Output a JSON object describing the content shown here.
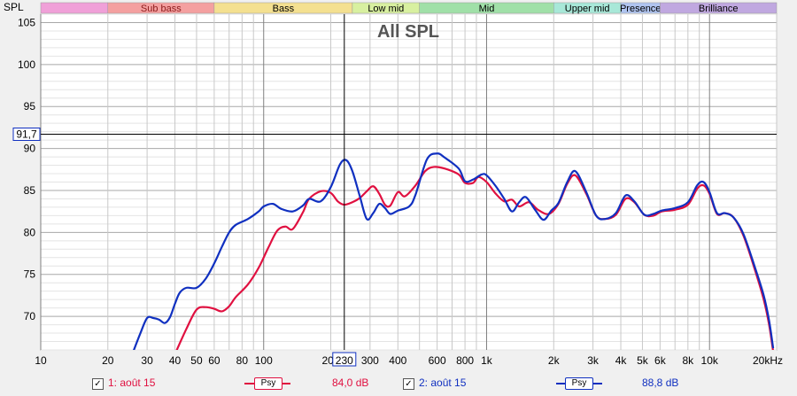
{
  "chart_data": {
    "type": "line",
    "title": "All SPL",
    "ylabel": "SPL",
    "xlabel": "",
    "x_scale": "log",
    "xlim": [
      10,
      20000
    ],
    "ylim": [
      66,
      106
    ],
    "x_ticks": [
      {
        "v": 10,
        "label": "10"
      },
      {
        "v": 20,
        "label": "20"
      },
      {
        "v": 30,
        "label": "30"
      },
      {
        "v": 40,
        "label": "40"
      },
      {
        "v": 50,
        "label": "50"
      },
      {
        "v": 60,
        "label": "60"
      },
      {
        "v": 80,
        "label": "80"
      },
      {
        "v": 100,
        "label": "100"
      },
      {
        "v": 200,
        "label": "200"
      },
      {
        "v": 300,
        "label": "300"
      },
      {
        "v": 400,
        "label": "400"
      },
      {
        "v": 600,
        "label": "600"
      },
      {
        "v": 800,
        "label": "800"
      },
      {
        "v": 1000,
        "label": "1k"
      },
      {
        "v": 2000,
        "label": "2k"
      },
      {
        "v": 3000,
        "label": "3k"
      },
      {
        "v": 4000,
        "label": "4k"
      },
      {
        "v": 5000,
        "label": "5k"
      },
      {
        "v": 6000,
        "label": "6k"
      },
      {
        "v": 8000,
        "label": "8k"
      },
      {
        "v": 10000,
        "label": "10k"
      },
      {
        "v": 20000,
        "label": "20kHz"
      }
    ],
    "y_ticks": [
      70,
      75,
      80,
      85,
      90,
      95,
      100,
      105
    ],
    "cursor": {
      "x": 230,
      "x_label": "230",
      "y": 91.7,
      "y_label": "91,7"
    },
    "bands": [
      {
        "name": "",
        "from": 10,
        "to": 20,
        "color": "#f0a0d8",
        "text_color": "#000000"
      },
      {
        "name": "Sub bass",
        "from": 20,
        "to": 60,
        "color": "#f4a0a0",
        "text_color": "#8b1a1a"
      },
      {
        "name": "Bass",
        "from": 60,
        "to": 250,
        "color": "#f4e090",
        "text_color": "#000000"
      },
      {
        "name": "Low mid",
        "from": 250,
        "to": 500,
        "color": "#d8f0a0",
        "text_color": "#000000"
      },
      {
        "name": "Mid",
        "from": 500,
        "to": 2000,
        "color": "#a0e0a8",
        "text_color": "#000000"
      },
      {
        "name": "Upper mid",
        "from": 2000,
        "to": 4000,
        "color": "#a8e8d8",
        "text_color": "#000000"
      },
      {
        "name": "Presence",
        "from": 4000,
        "to": 6000,
        "color": "#b0c4f0",
        "text_color": "#000000"
      },
      {
        "name": "Brilliance",
        "from": 6000,
        "to": 20000,
        "color": "#c0a8e0",
        "text_color": "#000000"
      }
    ],
    "series": [
      {
        "name": "1: août 15",
        "color": "#e01040",
        "psy_label": "Psy",
        "value_label": "84,0 dB",
        "points": [
          [
            40,
            65.5
          ],
          [
            45,
            68.5
          ],
          [
            50,
            70.8
          ],
          [
            55,
            71.1
          ],
          [
            60,
            70.9
          ],
          [
            65,
            70.6
          ],
          [
            70,
            71.2
          ],
          [
            75,
            72.3
          ],
          [
            85,
            73.8
          ],
          [
            95,
            75.8
          ],
          [
            105,
            78.2
          ],
          [
            115,
            80.2
          ],
          [
            125,
            80.7
          ],
          [
            135,
            80.4
          ],
          [
            150,
            82.4
          ],
          [
            160,
            84.0
          ],
          [
            180,
            84.9
          ],
          [
            200,
            84.7
          ],
          [
            215,
            83.7
          ],
          [
            230,
            83.3
          ],
          [
            250,
            83.6
          ],
          [
            270,
            84.1
          ],
          [
            290,
            84.9
          ],
          [
            310,
            85.5
          ],
          [
            330,
            84.6
          ],
          [
            350,
            83.3
          ],
          [
            370,
            83.2
          ],
          [
            400,
            84.8
          ],
          [
            430,
            84.3
          ],
          [
            480,
            85.6
          ],
          [
            530,
            87.3
          ],
          [
            580,
            87.8
          ],
          [
            650,
            87.6
          ],
          [
            750,
            86.9
          ],
          [
            800,
            85.9
          ],
          [
            870,
            85.9
          ],
          [
            920,
            86.6
          ],
          [
            1000,
            86.0
          ],
          [
            1100,
            84.6
          ],
          [
            1200,
            83.7
          ],
          [
            1300,
            83.9
          ],
          [
            1400,
            83.1
          ],
          [
            1550,
            83.6
          ],
          [
            1700,
            82.7
          ],
          [
            1900,
            82.2
          ],
          [
            2100,
            83.4
          ],
          [
            2300,
            85.8
          ],
          [
            2500,
            86.8
          ],
          [
            2800,
            84.6
          ],
          [
            3100,
            82.0
          ],
          [
            3400,
            81.6
          ],
          [
            3800,
            82.1
          ],
          [
            4200,
            84.0
          ],
          [
            4600,
            83.6
          ],
          [
            5100,
            82.1
          ],
          [
            5600,
            82.0
          ],
          [
            6100,
            82.5
          ],
          [
            7000,
            82.7
          ],
          [
            8000,
            83.3
          ],
          [
            8800,
            85.2
          ],
          [
            9400,
            85.6
          ],
          [
            10000,
            84.6
          ],
          [
            10800,
            82.2
          ],
          [
            11700,
            82.3
          ],
          [
            12800,
            81.8
          ],
          [
            14200,
            79.6
          ],
          [
            16000,
            75.5
          ],
          [
            17500,
            72.0
          ],
          [
            18500,
            69.0
          ],
          [
            19300,
            65.8
          ]
        ]
      },
      {
        "name": "2: août 15",
        "color": "#1030c0",
        "psy_label": "Psy",
        "value_label": "88,8 dB",
        "points": [
          [
            26,
            65.8
          ],
          [
            28,
            68.0
          ],
          [
            30,
            69.8
          ],
          [
            32,
            69.8
          ],
          [
            34,
            69.6
          ],
          [
            36,
            69.2
          ],
          [
            38,
            69.9
          ],
          [
            40,
            71.5
          ],
          [
            42,
            72.8
          ],
          [
            45,
            73.4
          ],
          [
            50,
            73.4
          ],
          [
            55,
            74.5
          ],
          [
            60,
            76.3
          ],
          [
            65,
            78.3
          ],
          [
            70,
            80.0
          ],
          [
            75,
            80.9
          ],
          [
            85,
            81.6
          ],
          [
            95,
            82.5
          ],
          [
            100,
            83.1
          ],
          [
            110,
            83.4
          ],
          [
            120,
            82.8
          ],
          [
            135,
            82.5
          ],
          [
            150,
            83.2
          ],
          [
            160,
            84.0
          ],
          [
            180,
            83.7
          ],
          [
            200,
            85.4
          ],
          [
            220,
            88.1
          ],
          [
            235,
            88.6
          ],
          [
            250,
            87.3
          ],
          [
            270,
            84.3
          ],
          [
            290,
            81.6
          ],
          [
            310,
            82.3
          ],
          [
            330,
            83.4
          ],
          [
            350,
            82.9
          ],
          [
            370,
            82.2
          ],
          [
            400,
            82.6
          ],
          [
            450,
            83.1
          ],
          [
            480,
            84.5
          ],
          [
            540,
            88.7
          ],
          [
            600,
            89.4
          ],
          [
            650,
            88.9
          ],
          [
            750,
            87.6
          ],
          [
            800,
            86.1
          ],
          [
            870,
            86.3
          ],
          [
            950,
            86.9
          ],
          [
            1000,
            86.8
          ],
          [
            1100,
            85.5
          ],
          [
            1200,
            84.0
          ],
          [
            1300,
            82.5
          ],
          [
            1400,
            83.6
          ],
          [
            1500,
            84.2
          ],
          [
            1650,
            82.7
          ],
          [
            1800,
            81.5
          ],
          [
            1950,
            82.6
          ],
          [
            2100,
            83.5
          ],
          [
            2300,
            86.0
          ],
          [
            2500,
            87.3
          ],
          [
            2800,
            84.8
          ],
          [
            3100,
            82.0
          ],
          [
            3400,
            81.6
          ],
          [
            3800,
            82.3
          ],
          [
            4200,
            84.4
          ],
          [
            4600,
            83.7
          ],
          [
            5100,
            82.1
          ],
          [
            5600,
            82.2
          ],
          [
            6100,
            82.6
          ],
          [
            7000,
            82.9
          ],
          [
            8000,
            83.6
          ],
          [
            8800,
            85.6
          ],
          [
            9400,
            86.0
          ],
          [
            10000,
            84.8
          ],
          [
            10800,
            82.3
          ],
          [
            11700,
            82.3
          ],
          [
            12800,
            81.8
          ],
          [
            14200,
            79.8
          ],
          [
            16000,
            75.8
          ],
          [
            17500,
            72.5
          ],
          [
            18500,
            69.5
          ],
          [
            19300,
            66.2
          ]
        ]
      }
    ],
    "grid": true,
    "legend": "bottom"
  },
  "legend": {
    "s1_check": "✓",
    "s1_name": "1: août 15",
    "s1_psy": "Psy",
    "s1_value": "84,0 dB",
    "s2_check": "✓",
    "s2_name": "2: août 15",
    "s2_psy": "Psy",
    "s2_value": "88,8 dB"
  }
}
